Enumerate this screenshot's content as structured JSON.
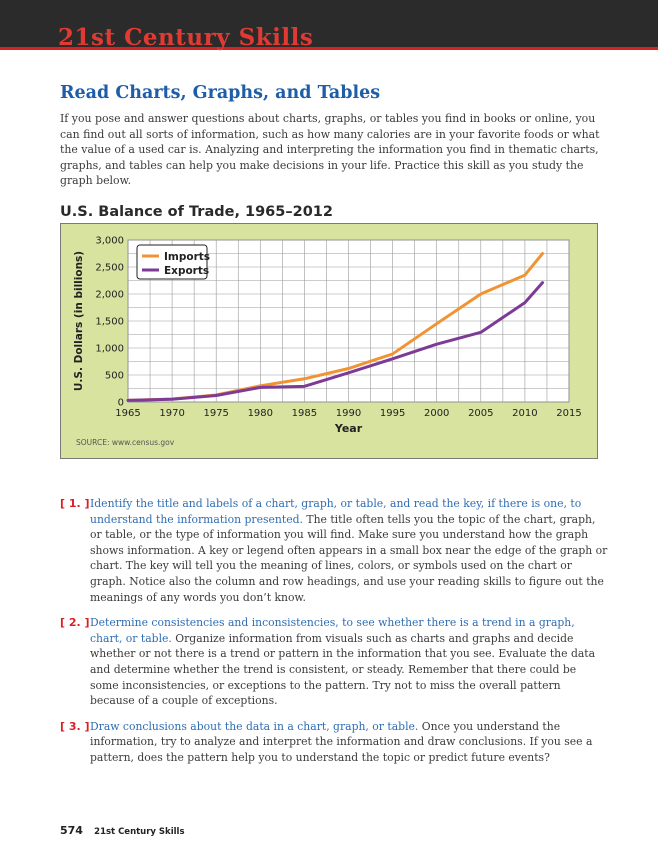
{
  "header": {
    "title": "21st Century Skills"
  },
  "section": {
    "heading": "Read Charts, Graphs, and Tables",
    "intro": "If you pose and answer questions about charts, graphs, or tables you find in books or online, you can find out all sorts of information, such as how many calories are in your favorite foods or what the value of a used car is. Analyzing and interpreting the information you find in thematic charts, graphs, and tables can help you make decisions in your life. Practice this skill as you study the graph below."
  },
  "chart_data": {
    "type": "line",
    "title": "U.S. Balance of Trade, 1965–2012",
    "xlabel": "Year",
    "ylabel": "U.S. Dollars (in billions)",
    "xlim": [
      1965,
      2015
    ],
    "ylim": [
      0,
      3000
    ],
    "x_ticks": [
      "1965",
      "1970",
      "1975",
      "1980",
      "1985",
      "1990",
      "1995",
      "2000",
      "2005",
      "2010",
      "2015"
    ],
    "y_ticks": [
      "0",
      "500",
      "1,000",
      "1,500",
      "2,000",
      "2,500",
      "3,000"
    ],
    "grid": true,
    "legend_position": "top-left",
    "source": "SOURCE: www.census.gov",
    "series": [
      {
        "name": "Imports",
        "color": "#f29333",
        "x": [
          1965,
          1970,
          1975,
          1980,
          1985,
          1990,
          1995,
          2000,
          2005,
          2010,
          2012
        ],
        "y": [
          30,
          55,
          130,
          300,
          430,
          620,
          890,
          1450,
          2000,
          2350,
          2750
        ]
      },
      {
        "name": "Exports",
        "color": "#7d3b96",
        "x": [
          1965,
          1970,
          1975,
          1980,
          1985,
          1990,
          1995,
          2000,
          2005,
          2010,
          2012
        ],
        "y": [
          30,
          50,
          120,
          270,
          290,
          540,
          800,
          1070,
          1290,
          1840,
          2210
        ]
      }
    ]
  },
  "items": [
    {
      "num": "[ 1. ]",
      "lead": "Identify the title and labels of a chart, graph, or table, and read the key, if there is one, to understand the information presented.",
      "body": " The title often tells you the topic of the chart, graph, or table, or the type of information you will find. Make sure you understand how the graph shows information. A key or legend often appears in a small box near the edge of the graph or chart. The key will tell you the meaning of lines, colors, or symbols used on the chart or graph. Notice also the column and row headings, and use your reading skills to figure out the meanings of any words you don’t know."
    },
    {
      "num": "[ 2. ]",
      "lead": "Determine consistencies and inconsistencies, to see whether there is a trend in a graph, chart, or table.",
      "body": " Organize information from visuals such as charts and graphs and decide whether or not there is a trend or pattern in the information that you see. Evaluate the data and determine whether the trend is consistent, or steady. Remember that there could be some inconsistencies, or exceptions to the pattern. Try not to miss the overall pattern because of a couple of exceptions."
    },
    {
      "num": "[ 3. ]",
      "lead": "Draw conclusions about the data in a chart, graph, or table.",
      "body": " Once you understand the information, try to analyze and interpret the information and draw conclusions. If you see a pattern, does the pattern help you to understand the topic or predict future events?"
    }
  ],
  "footer": {
    "page_number": "574",
    "running_title": "21st Century Skills"
  }
}
